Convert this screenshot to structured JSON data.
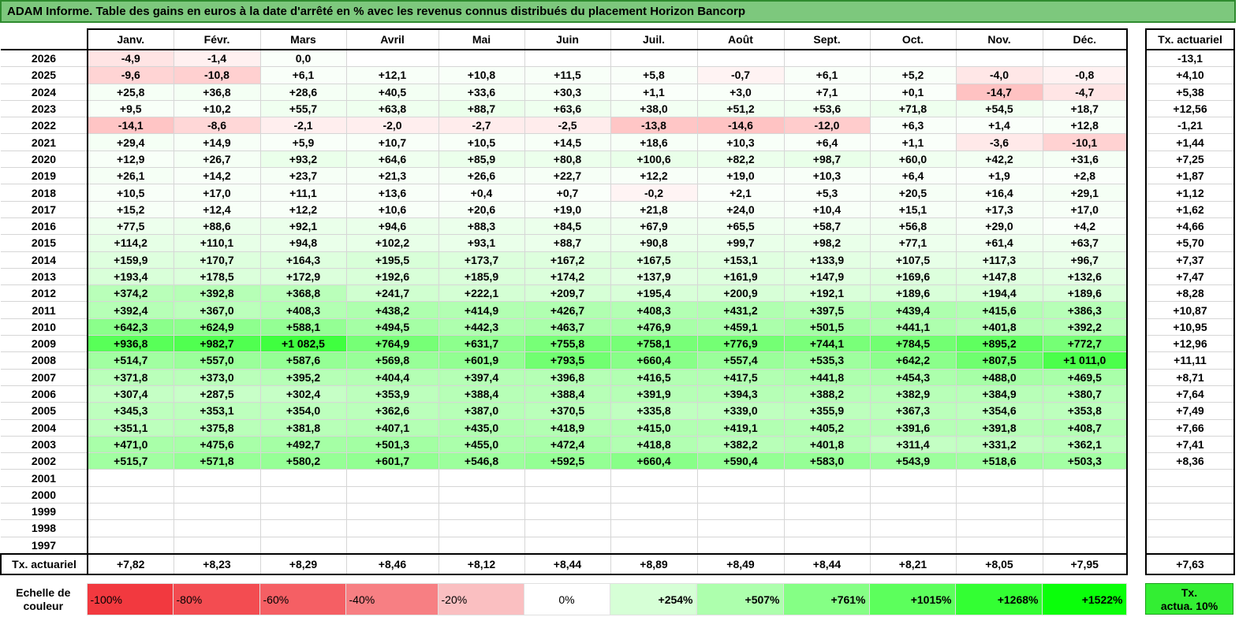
{
  "title": "ADAM Informe. Table des gains en euros à la date d'arrêté en % avec les revenus connus distribués du placement Horizon Bancorp",
  "months": [
    "Janv.",
    "Févr.",
    "Mars",
    "Avril",
    "Mai",
    "Juin",
    "Juil.",
    "Août",
    "Sept.",
    "Oct.",
    "Nov.",
    "Déc."
  ],
  "side_header": "Tx. actuariel",
  "rows": [
    {
      "year": "2026",
      "values": [
        "-4,9",
        "-1,4",
        "0,0",
        "",
        "",
        "",
        "",
        "",
        "",
        "",
        "",
        ""
      ],
      "tx": "-13,1"
    },
    {
      "year": "2025",
      "values": [
        "-9,6",
        "-10,8",
        "+6,1",
        "+12,1",
        "+10,8",
        "+11,5",
        "+5,8",
        "-0,7",
        "+6,1",
        "+5,2",
        "-4,0",
        "-0,8"
      ],
      "tx": "+4,10"
    },
    {
      "year": "2024",
      "values": [
        "+25,8",
        "+36,8",
        "+28,6",
        "+40,5",
        "+33,6",
        "+30,3",
        "+1,1",
        "+3,0",
        "+7,1",
        "+0,1",
        "-14,7",
        "-4,7"
      ],
      "tx": "+5,38"
    },
    {
      "year": "2023",
      "values": [
        "+9,5",
        "+10,2",
        "+55,7",
        "+63,8",
        "+88,7",
        "+63,6",
        "+38,0",
        "+51,2",
        "+53,6",
        "+71,8",
        "+54,5",
        "+18,7"
      ],
      "tx": "+12,56"
    },
    {
      "year": "2022",
      "values": [
        "-14,1",
        "-8,6",
        "-2,1",
        "-2,0",
        "-2,7",
        "-2,5",
        "-13,8",
        "-14,6",
        "-12,0",
        "+6,3",
        "+1,4",
        "+12,8"
      ],
      "tx": "-1,21"
    },
    {
      "year": "2021",
      "values": [
        "+29,4",
        "+14,9",
        "+5,9",
        "+10,7",
        "+10,5",
        "+14,5",
        "+18,6",
        "+10,3",
        "+6,4",
        "+1,1",
        "-3,6",
        "-10,1"
      ],
      "tx": "+1,44"
    },
    {
      "year": "2020",
      "values": [
        "+12,9",
        "+26,7",
        "+93,2",
        "+64,6",
        "+85,9",
        "+80,8",
        "+100,6",
        "+82,2",
        "+98,7",
        "+60,0",
        "+42,2",
        "+31,6"
      ],
      "tx": "+7,25"
    },
    {
      "year": "2019",
      "values": [
        "+26,1",
        "+14,2",
        "+23,7",
        "+21,3",
        "+26,6",
        "+22,7",
        "+12,2",
        "+19,0",
        "+10,3",
        "+6,4",
        "+1,9",
        "+2,8"
      ],
      "tx": "+1,87"
    },
    {
      "year": "2018",
      "values": [
        "+10,5",
        "+17,0",
        "+11,1",
        "+13,6",
        "+0,4",
        "+0,7",
        "-0,2",
        "+2,1",
        "+5,3",
        "+20,5",
        "+16,4",
        "+29,1"
      ],
      "tx": "+1,12"
    },
    {
      "year": "2017",
      "values": [
        "+15,2",
        "+12,4",
        "+12,2",
        "+10,6",
        "+20,6",
        "+19,0",
        "+21,8",
        "+24,0",
        "+10,4",
        "+15,1",
        "+17,3",
        "+17,0"
      ],
      "tx": "+1,62"
    },
    {
      "year": "2016",
      "values": [
        "+77,5",
        "+88,6",
        "+92,1",
        "+94,6",
        "+88,3",
        "+84,5",
        "+67,9",
        "+65,5",
        "+58,7",
        "+56,8",
        "+29,0",
        "+4,2"
      ],
      "tx": "+4,66"
    },
    {
      "year": "2015",
      "values": [
        "+114,2",
        "+110,1",
        "+94,8",
        "+102,2",
        "+93,1",
        "+88,7",
        "+90,8",
        "+99,7",
        "+98,2",
        "+77,1",
        "+61,4",
        "+63,7"
      ],
      "tx": "+5,70"
    },
    {
      "year": "2014",
      "values": [
        "+159,9",
        "+170,7",
        "+164,3",
        "+195,5",
        "+173,7",
        "+167,2",
        "+167,5",
        "+153,1",
        "+133,9",
        "+107,5",
        "+117,3",
        "+96,7"
      ],
      "tx": "+7,37"
    },
    {
      "year": "2013",
      "values": [
        "+193,4",
        "+178,5",
        "+172,9",
        "+192,6",
        "+185,9",
        "+174,2",
        "+137,9",
        "+161,9",
        "+147,9",
        "+169,6",
        "+147,8",
        "+132,6"
      ],
      "tx": "+7,47"
    },
    {
      "year": "2012",
      "values": [
        "+374,2",
        "+392,8",
        "+368,8",
        "+241,7",
        "+222,1",
        "+209,7",
        "+195,4",
        "+200,9",
        "+192,1",
        "+189,6",
        "+194,4",
        "+189,6"
      ],
      "tx": "+8,28"
    },
    {
      "year": "2011",
      "values": [
        "+392,4",
        "+367,0",
        "+408,3",
        "+438,2",
        "+414,9",
        "+426,7",
        "+408,3",
        "+431,2",
        "+397,5",
        "+439,4",
        "+415,6",
        "+386,3"
      ],
      "tx": "+10,87"
    },
    {
      "year": "2010",
      "values": [
        "+642,3",
        "+624,9",
        "+588,1",
        "+494,5",
        "+442,3",
        "+463,7",
        "+476,9",
        "+459,1",
        "+501,5",
        "+441,1",
        "+401,8",
        "+392,2"
      ],
      "tx": "+10,95"
    },
    {
      "year": "2009",
      "values": [
        "+936,8",
        "+982,7",
        "+1 082,5",
        "+764,9",
        "+631,7",
        "+755,8",
        "+758,1",
        "+776,9",
        "+744,1",
        "+784,5",
        "+895,2",
        "+772,7"
      ],
      "tx": "+12,96"
    },
    {
      "year": "2008",
      "values": [
        "+514,7",
        "+557,0",
        "+587,6",
        "+569,8",
        "+601,9",
        "+793,5",
        "+660,4",
        "+557,4",
        "+535,3",
        "+642,2",
        "+807,5",
        "+1 011,0"
      ],
      "tx": "+11,11"
    },
    {
      "year": "2007",
      "values": [
        "+371,8",
        "+373,0",
        "+395,2",
        "+404,4",
        "+397,4",
        "+396,8",
        "+416,5",
        "+417,5",
        "+441,8",
        "+454,3",
        "+488,0",
        "+469,5"
      ],
      "tx": "+8,71"
    },
    {
      "year": "2006",
      "values": [
        "+307,4",
        "+287,5",
        "+302,4",
        "+353,9",
        "+388,4",
        "+388,4",
        "+391,9",
        "+394,3",
        "+388,2",
        "+382,9",
        "+384,9",
        "+380,7"
      ],
      "tx": "+7,64"
    },
    {
      "year": "2005",
      "values": [
        "+345,3",
        "+353,1",
        "+354,0",
        "+362,6",
        "+387,0",
        "+370,5",
        "+335,8",
        "+339,0",
        "+355,9",
        "+367,3",
        "+354,6",
        "+353,8"
      ],
      "tx": "+7,49"
    },
    {
      "year": "2004",
      "values": [
        "+351,1",
        "+375,8",
        "+381,8",
        "+407,1",
        "+435,0",
        "+418,9",
        "+415,0",
        "+419,1",
        "+405,2",
        "+391,6",
        "+391,8",
        "+408,7"
      ],
      "tx": "+7,66"
    },
    {
      "year": "2003",
      "values": [
        "+471,0",
        "+475,6",
        "+492,7",
        "+501,3",
        "+455,0",
        "+472,4",
        "+418,8",
        "+382,2",
        "+401,8",
        "+311,4",
        "+331,2",
        "+362,1"
      ],
      "tx": "+7,41"
    },
    {
      "year": "2002",
      "values": [
        "+515,7",
        "+571,8",
        "+580,2",
        "+601,7",
        "+546,8",
        "+592,5",
        "+660,4",
        "+590,4",
        "+583,0",
        "+543,9",
        "+518,6",
        "+503,3"
      ],
      "tx": "+8,36"
    },
    {
      "year": "2001",
      "values": [
        "",
        "",
        "",
        "",
        "",
        "",
        "",
        "",
        "",
        "",
        "",
        ""
      ],
      "tx": ""
    },
    {
      "year": "2000",
      "values": [
        "",
        "",
        "",
        "",
        "",
        "",
        "",
        "",
        "",
        "",
        "",
        ""
      ],
      "tx": ""
    },
    {
      "year": "1999",
      "values": [
        "",
        "",
        "",
        "",
        "",
        "",
        "",
        "",
        "",
        "",
        "",
        ""
      ],
      "tx": ""
    },
    {
      "year": "1998",
      "values": [
        "",
        "",
        "",
        "",
        "",
        "",
        "",
        "",
        "",
        "",
        "",
        ""
      ],
      "tx": ""
    },
    {
      "year": "1997",
      "values": [
        "",
        "",
        "",
        "",
        "",
        "",
        "",
        "",
        "",
        "",
        "",
        ""
      ],
      "tx": ""
    }
  ],
  "footer": {
    "label": "Tx. actuariel",
    "values": [
      "+7,82",
      "+8,23",
      "+8,29",
      "+8,46",
      "+8,12",
      "+8,44",
      "+8,89",
      "+8,49",
      "+8,44",
      "+8,21",
      "+8,05",
      "+7,95"
    ],
    "tx": "+7,63"
  },
  "legend": {
    "label_line1": "Echelle de",
    "label_line2": "couleur",
    "items": [
      "-100%",
      "-80%",
      "-60%",
      "-40%",
      "-20%",
      "0%",
      "+254%",
      "+507%",
      "+761%",
      "+1015%",
      "+1268%",
      "+1522%"
    ],
    "colors": [
      "#f2393f",
      "#f34c51",
      "#f55f64",
      "#f77f83",
      "#fabfc1",
      "#ffffff",
      "#d6ffd6",
      "#adffad",
      "#85ff85",
      "#5cff5c",
      "#33ff33",
      "#0aff0a"
    ],
    "side_line1": "Tx.",
    "side_line2": "actua. 10%"
  },
  "colors": {
    "title_bg": "#7dc87d",
    "negative": "#ff6e6e",
    "positive": "#33ee33"
  }
}
